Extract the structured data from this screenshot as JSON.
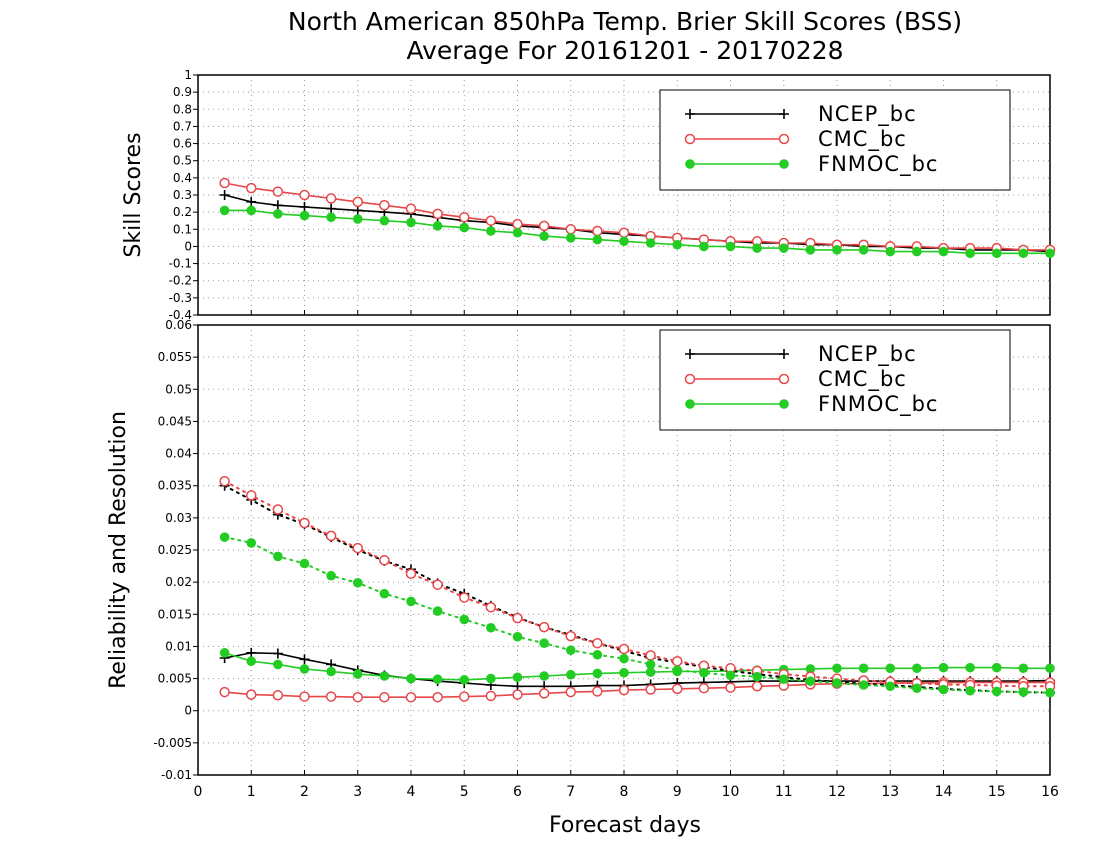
{
  "title_line1": "North American 850hPa Temp. Brier Skill Scores (BSS)",
  "title_line2": "Average For 20161201 - 20170228",
  "xlabel": "Forecast days",
  "colors": {
    "NCEP_bc": "#000000",
    "CMC_bc": "#e8474a",
    "FNMOC_bc": "#22cc22"
  },
  "chart_data": [
    {
      "type": "line",
      "panel": "top",
      "ylabel": "Skill Scores",
      "xlim": [
        0,
        16
      ],
      "ylim": [
        -0.4,
        1
      ],
      "xticks": [
        "0",
        "1",
        "2",
        "3",
        "4",
        "5",
        "6",
        "7",
        "8",
        "9",
        "10",
        "11",
        "12",
        "13",
        "14",
        "15",
        "16"
      ],
      "yticks": [
        "1",
        "0.9",
        "0.8",
        "0.7",
        "0.6",
        "0.5",
        "0.4",
        "0.3",
        "0.2",
        "0.1",
        "0",
        "-0.1",
        "-0.2",
        "-0.3",
        "-0.4"
      ],
      "grid": true,
      "legend_position": "top-right",
      "x": [
        0.5,
        1,
        1.5,
        2,
        2.5,
        3,
        3.5,
        4,
        4.5,
        5,
        5.5,
        6,
        6.5,
        7,
        7.5,
        8,
        8.5,
        9,
        9.5,
        10,
        10.5,
        11,
        11.5,
        12,
        12.5,
        13,
        13.5,
        14,
        14.5,
        15,
        15.5,
        16
      ],
      "series": [
        {
          "name": "NCEP_bc",
          "marker": "plus",
          "style": "solid",
          "values": [
            0.3,
            0.26,
            0.24,
            0.23,
            0.22,
            0.21,
            0.2,
            0.19,
            0.17,
            0.15,
            0.14,
            0.12,
            0.11,
            0.1,
            0.08,
            0.07,
            0.06,
            0.05,
            0.04,
            0.03,
            0.02,
            0.02,
            0.01,
            0.01,
            0.0,
            0.0,
            -0.01,
            -0.01,
            -0.02,
            -0.02,
            -0.02,
            -0.03
          ]
        },
        {
          "name": "CMC_bc",
          "marker": "circle-open",
          "style": "solid",
          "values": [
            0.37,
            0.34,
            0.32,
            0.3,
            0.28,
            0.26,
            0.24,
            0.22,
            0.19,
            0.17,
            0.15,
            0.13,
            0.12,
            0.1,
            0.09,
            0.08,
            0.06,
            0.05,
            0.04,
            0.03,
            0.03,
            0.02,
            0.02,
            0.01,
            0.01,
            0.0,
            0.0,
            -0.01,
            -0.01,
            -0.01,
            -0.02,
            -0.02
          ]
        },
        {
          "name": "FNMOC_bc",
          "marker": "circle-filled",
          "style": "solid",
          "values": [
            0.21,
            0.21,
            0.19,
            0.18,
            0.17,
            0.16,
            0.15,
            0.14,
            0.12,
            0.11,
            0.09,
            0.08,
            0.06,
            0.05,
            0.04,
            0.03,
            0.02,
            0.01,
            0.0,
            0.0,
            -0.01,
            -0.01,
            -0.02,
            -0.02,
            -0.02,
            -0.03,
            -0.03,
            -0.03,
            -0.04,
            -0.04,
            -0.04,
            -0.04
          ]
        }
      ]
    },
    {
      "type": "line",
      "panel": "bottom",
      "ylabel": "Reliability and Resolution",
      "xlim": [
        0,
        16
      ],
      "ylim": [
        -0.01,
        0.06
      ],
      "xticks": [
        "0",
        "1",
        "2",
        "3",
        "4",
        "5",
        "6",
        "7",
        "8",
        "9",
        "10",
        "11",
        "12",
        "13",
        "14",
        "15",
        "16"
      ],
      "yticks": [
        "0.06",
        "0.055",
        "0.05",
        "0.045",
        "0.04",
        "0.035",
        "0.03",
        "0.025",
        "0.02",
        "0.015",
        "0.01",
        "0.005",
        "0",
        "-0.005",
        "-0.01"
      ],
      "grid": true,
      "legend_position": "top-right",
      "x": [
        0.5,
        1,
        1.5,
        2,
        2.5,
        3,
        3.5,
        4,
        4.5,
        5,
        5.5,
        6,
        6.5,
        7,
        7.5,
        8,
        8.5,
        9,
        9.5,
        10,
        10.5,
        11,
        11.5,
        12,
        12.5,
        13,
        13.5,
        14,
        14.5,
        15,
        15.5,
        16
      ],
      "series": [
        {
          "name": "NCEP_bc",
          "marker": "plus",
          "style": "solid",
          "metric": "reliability",
          "values": [
            0.0082,
            0.009,
            0.0089,
            0.008,
            0.0072,
            0.0063,
            0.0055,
            0.005,
            0.0046,
            0.0043,
            0.004,
            0.0038,
            0.0038,
            0.0038,
            0.0039,
            0.0039,
            0.0041,
            0.0043,
            0.0044,
            0.0045,
            0.0046,
            0.0046,
            0.0046,
            0.0046,
            0.0046,
            0.0046,
            0.0046,
            0.0046,
            0.0046,
            0.0046,
            0.0046,
            0.0047
          ]
        },
        {
          "name": "CMC_bc",
          "marker": "circle-open",
          "style": "solid",
          "metric": "reliability",
          "values": [
            0.0029,
            0.0025,
            0.0024,
            0.0022,
            0.0022,
            0.0021,
            0.0021,
            0.0021,
            0.0021,
            0.0022,
            0.0023,
            0.0025,
            0.0027,
            0.0029,
            0.003,
            0.0032,
            0.0033,
            0.0034,
            0.0035,
            0.0036,
            0.0038,
            0.0039,
            0.0041,
            0.0042,
            0.0042,
            0.0043,
            0.0043,
            0.0044,
            0.0044,
            0.0044,
            0.0044,
            0.0044
          ]
        },
        {
          "name": "FNMOC_bc",
          "marker": "circle-filled",
          "style": "solid",
          "metric": "reliability",
          "values": [
            0.009,
            0.0077,
            0.0072,
            0.0065,
            0.0061,
            0.0057,
            0.0054,
            0.005,
            0.0049,
            0.0048,
            0.005,
            0.0052,
            0.0054,
            0.0056,
            0.0058,
            0.0059,
            0.006,
            0.0061,
            0.0061,
            0.0062,
            0.0063,
            0.0064,
            0.0065,
            0.0066,
            0.0066,
            0.0066,
            0.0066,
            0.0067,
            0.0067,
            0.0067,
            0.0066,
            0.0066
          ]
        },
        {
          "name": "NCEP_bc",
          "marker": "plus",
          "style": "dotted",
          "metric": "resolution",
          "values": [
            0.035,
            0.0328,
            0.0305,
            0.029,
            0.027,
            0.025,
            0.0233,
            0.022,
            0.0198,
            0.0182,
            0.0163,
            0.0145,
            0.013,
            0.0118,
            0.0105,
            0.0093,
            0.0082,
            0.0075,
            0.0068,
            0.0062,
            0.0057,
            0.0052,
            0.0048,
            0.0045,
            0.0042,
            0.004,
            0.0037,
            0.0034,
            0.0032,
            0.003,
            0.0029,
            0.0028
          ]
        },
        {
          "name": "CMC_bc",
          "marker": "circle-open",
          "style": "dotted",
          "metric": "resolution",
          "values": [
            0.0357,
            0.0335,
            0.0313,
            0.0292,
            0.0272,
            0.0253,
            0.0234,
            0.0213,
            0.0196,
            0.0176,
            0.0161,
            0.0144,
            0.013,
            0.0116,
            0.0105,
            0.0096,
            0.0086,
            0.0077,
            0.007,
            0.0066,
            0.0062,
            0.0057,
            0.0053,
            0.005,
            0.0047,
            0.0045,
            0.0043,
            0.0041,
            0.004,
            0.0039,
            0.0038,
            0.0038
          ]
        },
        {
          "name": "FNMOC_bc",
          "marker": "circle-filled",
          "style": "dotted",
          "metric": "resolution",
          "values": [
            0.027,
            0.0261,
            0.024,
            0.0229,
            0.021,
            0.0199,
            0.0182,
            0.017,
            0.0155,
            0.0142,
            0.0129,
            0.0115,
            0.0105,
            0.0094,
            0.0087,
            0.0081,
            0.0072,
            0.0063,
            0.0059,
            0.0055,
            0.0053,
            0.0049,
            0.0046,
            0.0043,
            0.004,
            0.0038,
            0.0035,
            0.0033,
            0.0031,
            0.003,
            0.0029,
            0.0028
          ]
        }
      ]
    }
  ]
}
